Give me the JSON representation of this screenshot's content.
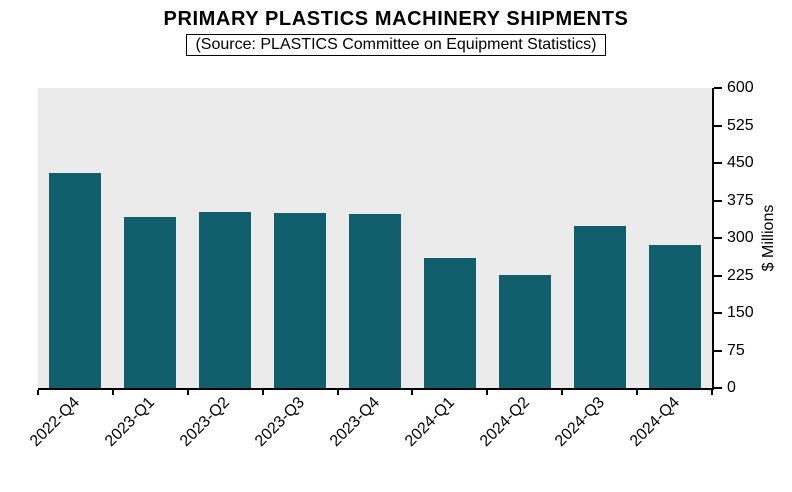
{
  "chart_data": {
    "type": "bar",
    "title": "PRIMARY PLASTICS MACHINERY SHIPMENTS",
    "subtitle": "(Source: PLASTICS Committee on Equipment Statistics)",
    "categories": [
      "2022-Q4",
      "2023-Q1",
      "2023-Q2",
      "2023-Q3",
      "2023-Q4",
      "2024-Q1",
      "2024-Q2",
      "2024-Q3",
      "2024-Q4"
    ],
    "values": [
      430,
      342,
      352,
      350,
      348,
      260,
      225,
      323,
      285
    ],
    "xlabel": "",
    "ylabel": "$ Millions",
    "ylim": [
      0,
      600
    ],
    "yticks": [
      0,
      75,
      150,
      225,
      300,
      375,
      450,
      525,
      600
    ],
    "grid": false,
    "legend_position": "none",
    "bar_color": "#115E6D",
    "plot_background": "#EBEBEB",
    "axis_color": "#000000"
  }
}
